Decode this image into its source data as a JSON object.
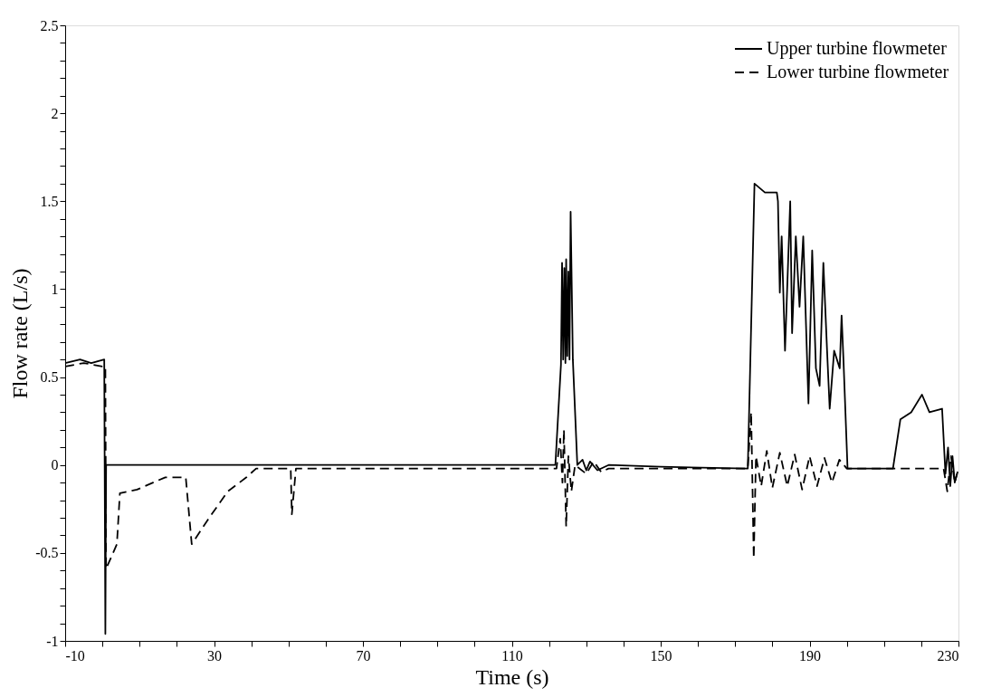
{
  "chart_data": {
    "type": "line",
    "xlabel": "Time (s)",
    "ylabel": "Flow rate (L/s)",
    "xlim": [
      -10,
      230
    ],
    "ylim": [
      -1,
      2.5
    ],
    "xticks": [
      -10,
      {
        "value": 0,
        "label": null
      },
      {
        "value": 10,
        "label": null
      },
      {
        "value": 20,
        "label": null
      },
      30,
      {
        "value": 40,
        "label": null
      },
      {
        "value": 50,
        "label": null
      },
      {
        "value": 60,
        "label": null
      },
      70,
      {
        "value": 80,
        "label": null
      },
      {
        "value": 90,
        "label": null
      },
      {
        "value": 100,
        "label": null
      },
      110,
      {
        "value": 120,
        "label": null
      },
      {
        "value": 130,
        "label": null
      },
      {
        "value": 140,
        "label": null
      },
      150,
      {
        "value": 160,
        "label": null
      },
      {
        "value": 170,
        "label": null
      },
      {
        "value": 180,
        "label": null
      },
      190,
      {
        "value": 200,
        "label": null
      },
      {
        "value": 210,
        "label": null
      },
      {
        "value": 220,
        "label": null
      },
      230
    ],
    "yticks": [
      -1,
      {
        "value": -0.9,
        "label": null
      },
      {
        "value": -0.8,
        "label": null
      },
      {
        "value": -0.7,
        "label": null
      },
      {
        "value": -0.6,
        "label": null
      },
      -0.5,
      {
        "value": -0.4,
        "label": null
      },
      {
        "value": -0.3,
        "label": null
      },
      {
        "value": -0.2,
        "label": null
      },
      {
        "value": -0.1,
        "label": null
      },
      0,
      {
        "value": 0.1,
        "label": null
      },
      {
        "value": 0.2,
        "label": null
      },
      {
        "value": 0.3,
        "label": null
      },
      {
        "value": 0.4,
        "label": null
      },
      0.5,
      {
        "value": 0.6,
        "label": null
      },
      {
        "value": 0.7,
        "label": null
      },
      {
        "value": 0.8,
        "label": null
      },
      {
        "value": 0.9,
        "label": null
      },
      1,
      {
        "value": 1.1,
        "label": null
      },
      {
        "value": 1.2,
        "label": null
      },
      {
        "value": 1.3,
        "label": null
      },
      {
        "value": 1.4,
        "label": null
      },
      1.5,
      {
        "value": 1.6,
        "label": null
      },
      {
        "value": 1.7,
        "label": null
      },
      {
        "value": 1.8,
        "label": null
      },
      {
        "value": 1.9,
        "label": null
      },
      2,
      {
        "value": 2.1,
        "label": null
      },
      {
        "value": 2.2,
        "label": null
      },
      {
        "value": 2.3,
        "label": null
      },
      {
        "value": 2.4,
        "label": null
      },
      2.5
    ],
    "grid": false,
    "legend": "top right",
    "marker": "none",
    "series": [
      {
        "name": "Upper turbine flowmeter",
        "color": "#000000",
        "line_style": "solid",
        "x": [
          -10,
          -6,
          -3,
          0.5,
          0.8,
          1,
          10,
          50,
          100,
          121.7,
          123.2,
          123.5,
          123.8,
          124.1,
          124.4,
          124.6,
          124.9,
          125.2,
          125.5,
          125.8,
          126.4,
          127.6,
          129,
          130,
          131,
          133,
          136,
          150,
          173.4,
          175.2,
          178,
          181.2,
          181.5,
          182,
          182.5,
          183.4,
          184.8,
          185.3,
          186.3,
          187.3,
          188.3,
          189.7,
          190.7,
          191.7,
          192.7,
          193.7,
          194.7,
          195.4,
          196.6,
          198.1,
          198.6,
          199.1,
          200.2,
          212.4,
          214.4,
          217.3,
          220.2,
          222.2,
          225.6,
          226.5,
          227.2,
          227.8,
          228.4,
          229,
          229.6
        ],
        "values": [
          0.58,
          0.6,
          0.58,
          0.6,
          -0.96,
          0,
          0,
          0,
          0,
          0,
          0.57,
          1.15,
          0.6,
          1.12,
          0.58,
          1.17,
          0.62,
          1.1,
          0.6,
          1.44,
          0.6,
          0,
          0.03,
          -0.03,
          0.02,
          -0.03,
          0,
          -0.01,
          -0.02,
          1.6,
          1.55,
          1.55,
          1.5,
          0.98,
          1.3,
          0.65,
          1.5,
          0.75,
          1.3,
          0.9,
          1.3,
          0.35,
          1.22,
          0.55,
          0.45,
          1.15,
          0.65,
          0.32,
          0.65,
          0.55,
          0.85,
          0.6,
          -0.02,
          -0.02,
          0.26,
          0.3,
          0.4,
          0.3,
          0.32,
          -0.05,
          0.1,
          -0.12,
          0.05,
          -0.1,
          -0.05
        ]
      },
      {
        "name": "Lower turbine flowmeter",
        "color": "#000000",
        "line_style": "dashed",
        "x": [
          -10,
          -5,
          0,
          0.8,
          1.0,
          3.9,
          4.7,
          9.3,
          16.9,
          22.4,
          24,
          28.7,
          33.7,
          38.7,
          41.3,
          50.6,
          50.9,
          52,
          100,
          122,
          123,
          123.6,
          124,
          124.6,
          125.2,
          126,
          127,
          130,
          132,
          134,
          136,
          173.4,
          174.3,
          175,
          175.6,
          177,
          178.5,
          180,
          182,
          184,
          186,
          188,
          190,
          192,
          194,
          196,
          198,
          200,
          226,
          227,
          228,
          229,
          230
        ],
        "values": [
          0.56,
          0.58,
          0.56,
          0.56,
          -0.59,
          -0.45,
          -0.16,
          -0.14,
          -0.07,
          -0.07,
          -0.45,
          -0.3,
          -0.15,
          -0.07,
          -0.02,
          -0.02,
          -0.28,
          -0.02,
          -0.02,
          -0.02,
          0.15,
          -0.1,
          0.2,
          -0.35,
          0.05,
          -0.15,
          0,
          -0.05,
          0.02,
          -0.04,
          -0.02,
          -0.02,
          0.3,
          -0.53,
          0.05,
          -0.12,
          0.08,
          -0.13,
          0.07,
          -0.12,
          0.06,
          -0.14,
          0.05,
          -0.12,
          0.04,
          -0.1,
          0.03,
          -0.02,
          -0.02,
          -0.15,
          0.05,
          -0.1,
          -0.02
        ]
      }
    ]
  }
}
